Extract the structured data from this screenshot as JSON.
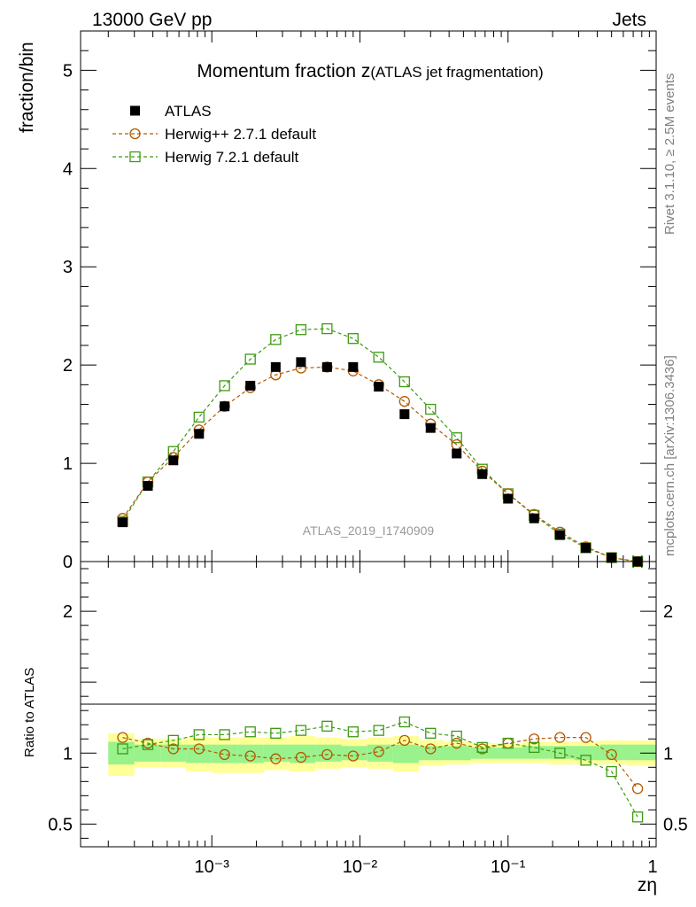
{
  "header": {
    "left": "13000 GeV pp",
    "right": "Jets"
  },
  "side_labels": {
    "rivet": "Rivet 3.1.10, ≥ 2.5M events",
    "site": "mcplots.cern.ch [arXiv:1306.3436]"
  },
  "chart_data": [
    {
      "type": "scatter",
      "title_main": "Momentum fraction z",
      "title_sub": "(ATLAS jet fragmentation)",
      "ylabel": "fraction/bin",
      "watermark": "ATLAS_2019_I1740909",
      "xscale": "log",
      "xlim": [
        0.00013,
        1.0
      ],
      "ylim": [
        0,
        5.4
      ],
      "yticks": [
        0,
        1,
        2,
        3,
        4,
        5
      ],
      "legend_position": "top-left",
      "x": [
        0.00025,
        0.00037,
        0.00055,
        0.00082,
        0.00122,
        0.00182,
        0.0027,
        0.004,
        0.006,
        0.009,
        0.0134,
        0.02,
        0.03,
        0.045,
        0.067,
        0.1,
        0.15,
        0.224,
        0.335,
        0.5,
        0.75
      ],
      "series": [
        {
          "name": "ATLAS",
          "color": "#000000",
          "marker": "filled-square",
          "values": [
            0.4,
            0.77,
            1.03,
            1.3,
            1.58,
            1.79,
            1.98,
            2.03,
            1.98,
            1.98,
            1.78,
            1.5,
            1.36,
            1.1,
            0.89,
            0.64,
            0.44,
            0.27,
            0.14,
            0.04,
            0.0
          ]
        },
        {
          "name": "Herwig++ 2.7.1 default",
          "color": "#b35900",
          "marker": "open-circle",
          "values": [
            0.44,
            0.81,
            1.06,
            1.34,
            1.58,
            1.77,
            1.9,
            1.97,
            1.98,
            1.94,
            1.8,
            1.63,
            1.4,
            1.19,
            0.92,
            0.69,
            0.48,
            0.3,
            0.15,
            0.04,
            0.0
          ]
        },
        {
          "name": "Herwig 7.2.1 default",
          "color": "#3d9a12",
          "marker": "open-square",
          "values": [
            0.41,
            0.81,
            1.12,
            1.47,
            1.79,
            2.06,
            2.26,
            2.36,
            2.37,
            2.27,
            2.08,
            1.83,
            1.55,
            1.26,
            0.94,
            0.69,
            0.47,
            0.28,
            0.14,
            0.04,
            0.0
          ]
        }
      ]
    },
    {
      "type": "scatter",
      "ylabel": "Ratio to ATLAS",
      "xlabel": "zη",
      "xscale": "log",
      "xlim": [
        0.00013,
        1.0
      ],
      "ylim": [
        0.34,
        2.35
      ],
      "yticks": [
        0.5,
        1,
        2
      ],
      "ytick_labels": [
        "0.5",
        "1",
        "2"
      ],
      "xtick_labels": [
        "10⁻³",
        "10⁻²",
        "10⁻¹",
        "1"
      ],
      "x": [
        0.00025,
        0.00037,
        0.00055,
        0.00082,
        0.00122,
        0.00182,
        0.0027,
        0.004,
        0.006,
        0.009,
        0.0134,
        0.02,
        0.03,
        0.045,
        0.067,
        0.1,
        0.15,
        0.224,
        0.335,
        0.5,
        0.75
      ],
      "band_edges": [
        0.0002,
        0.0003,
        0.00045,
        0.00067,
        0.001,
        0.0015,
        0.00224,
        0.00335,
        0.005,
        0.0075,
        0.0112,
        0.0167,
        0.025,
        0.0375,
        0.056,
        0.084,
        0.125,
        0.187,
        0.28,
        0.42,
        0.63,
        1.0
      ],
      "band_inner": [
        [
          0.92,
          1.08
        ],
        [
          0.94,
          1.06
        ],
        [
          0.94,
          1.06
        ],
        [
          0.93,
          1.06
        ],
        [
          0.93,
          1.06
        ],
        [
          0.93,
          1.06
        ],
        [
          0.94,
          1.06
        ],
        [
          0.93,
          1.06
        ],
        [
          0.94,
          1.06
        ],
        [
          0.95,
          1.05
        ],
        [
          0.94,
          1.06
        ],
        [
          0.93,
          1.06
        ],
        [
          0.95,
          1.05
        ],
        [
          0.95,
          1.05
        ],
        [
          0.96,
          1.04
        ],
        [
          0.96,
          1.04
        ],
        [
          0.96,
          1.05
        ],
        [
          0.96,
          1.05
        ],
        [
          0.95,
          1.05
        ],
        [
          0.95,
          1.06
        ],
        [
          0.95,
          1.06
        ]
      ],
      "band_outer": [
        [
          0.84,
          1.14
        ],
        [
          0.9,
          1.1
        ],
        [
          0.9,
          1.1
        ],
        [
          0.87,
          1.11
        ],
        [
          0.86,
          1.11
        ],
        [
          0.86,
          1.11
        ],
        [
          0.88,
          1.11
        ],
        [
          0.87,
          1.12
        ],
        [
          0.89,
          1.11
        ],
        [
          0.9,
          1.1
        ],
        [
          0.89,
          1.11
        ],
        [
          0.87,
          1.12
        ],
        [
          0.91,
          1.09
        ],
        [
          0.92,
          1.08
        ],
        [
          0.93,
          1.07
        ],
        [
          0.93,
          1.07
        ],
        [
          0.93,
          1.08
        ],
        [
          0.92,
          1.08
        ],
        [
          0.92,
          1.08
        ],
        [
          0.92,
          1.09
        ],
        [
          0.91,
          1.09
        ]
      ],
      "band_colors": {
        "inner": "#99f28c",
        "outer": "#ffff99"
      },
      "series": [
        {
          "name": "Herwig++ 2.7.1 default",
          "color": "#b35900",
          "marker": "open-circle",
          "values": [
            1.11,
            1.07,
            1.03,
            1.03,
            0.99,
            0.98,
            0.96,
            0.97,
            0.99,
            0.98,
            1.01,
            1.09,
            1.03,
            1.07,
            1.03,
            1.07,
            1.1,
            1.11,
            1.11,
            0.99,
            0.75
          ]
        },
        {
          "name": "Herwig 7.2.1 default",
          "color": "#3d9a12",
          "marker": "open-square",
          "values": [
            1.03,
            1.06,
            1.09,
            1.13,
            1.13,
            1.15,
            1.14,
            1.16,
            1.19,
            1.15,
            1.16,
            1.22,
            1.14,
            1.12,
            1.04,
            1.07,
            1.04,
            1.0,
            0.95,
            0.87,
            0.55
          ]
        }
      ]
    }
  ]
}
